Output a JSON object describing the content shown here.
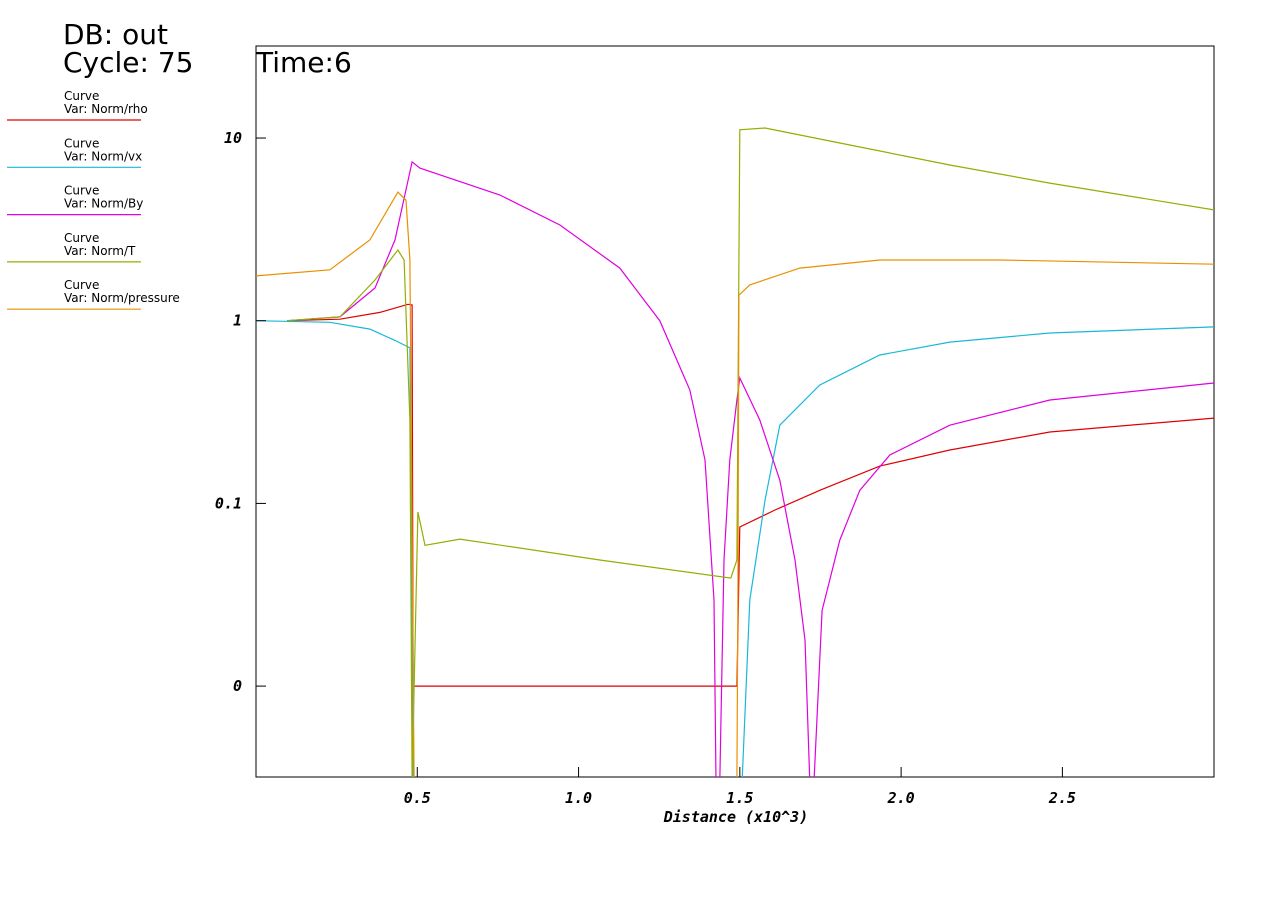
{
  "chart_data": {
    "type": "line",
    "header": [
      "DB: out",
      "Cycle: 75"
    ],
    "time_label": "Time:6",
    "legend_heading": "Curve",
    "xlabel": "Distance (x10^3)",
    "log_y": true,
    "xlim": [
      0,
      2.97
    ],
    "ylim": [
      0.00318,
      31.9
    ],
    "xticks": [
      0.5,
      {
        "value": 1,
        "label": "1.0"
      },
      1.5,
      {
        "value": 2,
        "label": "2.0"
      },
      2.5
    ],
    "yticks": [
      10,
      1,
      0.1,
      {
        "value": 0.01,
        "label": "0"
      }
    ],
    "series": [
      {
        "name": "Var: Norm/rho",
        "color": "#e00000",
        "x": [
          0.096,
          0.26,
          0.384,
          0.471,
          0.484,
          0.487,
          0.499,
          1.491,
          1.5,
          1.609,
          1.748,
          1.934,
          2.151,
          2.461,
          2.97
        ],
        "values": [
          1,
          1.02,
          1.11,
          1.23,
          1.22,
          0.01,
          0.01,
          0.01,
          0.0743,
          0.092,
          0.118,
          0.16,
          0.196,
          0.246,
          0.293
        ]
      },
      {
        "name": "Var: Norm/vx",
        "color": "#18b8d8",
        "x": [
          0,
          0.229,
          0.353,
          0.431,
          0.477,
          0.487,
          0.49,
          1.507,
          1.531,
          1.578,
          1.624,
          1.748,
          1.934,
          2.151,
          2.461,
          2.97
        ],
        "values": [
          1,
          0.98,
          0.9,
          0.78,
          0.71,
          0.003,
          null,
          0.003,
          0.0296,
          0.104,
          0.268,
          0.445,
          0.649,
          0.764,
          0.857,
          0.925
        ]
      },
      {
        "name": "Var: Norm/By",
        "color": "#e000e0",
        "x": [
          0.096,
          0.26,
          0.369,
          0.431,
          0.484,
          0.508,
          0.756,
          0.942,
          1.128,
          1.252,
          1.345,
          1.392,
          1.42,
          1.426,
          1.438,
          1.451,
          1.469,
          1.491,
          1.5,
          1.562,
          1.624,
          1.671,
          1.702,
          1.717,
          1.73,
          1.755,
          1.81,
          1.872,
          1.965,
          2.151,
          2.461,
          2.97
        ],
        "values": [
          1,
          1.05,
          1.51,
          2.77,
          7.4,
          6.85,
          4.88,
          3.34,
          1.94,
          1,
          0.418,
          0.173,
          0.0296,
          0.003,
          0.003,
          0.049,
          0.173,
          0.368,
          0.486,
          0.286,
          0.134,
          0.049,
          0.0179,
          0.003,
          0.003,
          0.026,
          0.063,
          0.118,
          0.184,
          0.268,
          0.368,
          0.456
        ]
      },
      {
        "name": "Var: Norm/T",
        "color": "#90b000",
        "x": [
          0.096,
          0.26,
          0.369,
          0.44,
          0.459,
          0.477,
          0.484,
          0.502,
          0.524,
          0.632,
          1.066,
          1.472,
          1.491,
          1.5,
          1.578,
          1.841,
          2.151,
          2.461,
          2.97
        ],
        "values": [
          1,
          1.05,
          1.67,
          2.44,
          2.15,
          0.286,
          0.003,
          0.0897,
          0.059,
          0.0638,
          0.049,
          0.039,
          0.049,
          11.1,
          11.35,
          9.16,
          7.12,
          5.67,
          4.04
        ]
      },
      {
        "name": "Var: Norm/pressure",
        "color": "#e89000",
        "x": [
          0,
          0.229,
          0.353,
          0.44,
          0.465,
          0.477,
          0.49,
          0.5,
          1.491,
          1.494,
          1.497,
          1.531,
          1.686,
          1.934,
          2.306,
          2.97
        ],
        "values": [
          1.76,
          1.9,
          2.77,
          5.06,
          4.57,
          2.15,
          0.003,
          null,
          0.003,
          0.0296,
          1.38,
          1.57,
          1.94,
          2.15,
          2.15,
          2.04
        ]
      }
    ]
  }
}
